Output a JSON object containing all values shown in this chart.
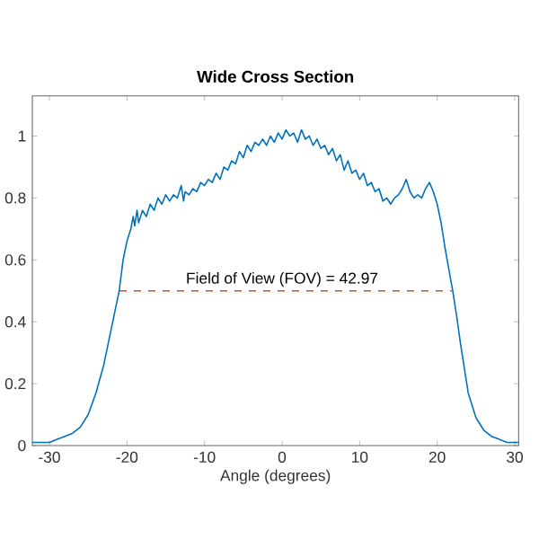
{
  "chart_data": {
    "type": "line",
    "title": "Wide Cross Section",
    "xlabel": "Angle (degrees)",
    "xlim": [
      -32.2,
      30.5
    ],
    "ylim": [
      0,
      1.13
    ],
    "xticks": [
      -30,
      -20,
      -10,
      0,
      10,
      20,
      30
    ],
    "yticks": [
      0,
      0.2,
      0.4,
      0.6,
      0.8,
      1
    ],
    "series": [
      {
        "color": "#0072bd",
        "x": [
          -32.2,
          -31,
          -30,
          -29,
          -28,
          -27,
          -26,
          -25,
          -24,
          -23,
          -22,
          -21.5,
          -21,
          -20.5,
          -20,
          -19.5,
          -19.2,
          -19,
          -18.7,
          -18.5,
          -18,
          -17.5,
          -17,
          -16.5,
          -16,
          -15.5,
          -15,
          -14.5,
          -14,
          -13.5,
          -13,
          -12.7,
          -12.5,
          -12,
          -11.5,
          -11,
          -10.5,
          -10,
          -9.5,
          -9,
          -8.5,
          -8,
          -7.5,
          -7,
          -6.5,
          -6,
          -5.5,
          -5,
          -4.5,
          -4,
          -3.5,
          -3,
          -2.5,
          -2,
          -1.5,
          -1,
          -0.5,
          0,
          0.5,
          1,
          1.5,
          2,
          2.5,
          3,
          3.5,
          4,
          4.5,
          5,
          5.5,
          6,
          6.5,
          7,
          7.5,
          8,
          8.5,
          9,
          9.5,
          10,
          10.5,
          11,
          11.5,
          12,
          12.5,
          13,
          13.5,
          14,
          14.5,
          15,
          15.5,
          16,
          16.5,
          17,
          17.5,
          18,
          18.5,
          19,
          19.5,
          20,
          20.5,
          21,
          21.5,
          22,
          22.5,
          23,
          24,
          25,
          26,
          27,
          28,
          29,
          30,
          30.5
        ],
        "values": [
          0.01,
          0.01,
          0.01,
          0.02,
          0.03,
          0.04,
          0.06,
          0.1,
          0.17,
          0.26,
          0.38,
          0.44,
          0.5,
          0.6,
          0.66,
          0.7,
          0.74,
          0.71,
          0.76,
          0.72,
          0.76,
          0.74,
          0.78,
          0.76,
          0.8,
          0.78,
          0.81,
          0.79,
          0.81,
          0.8,
          0.84,
          0.79,
          0.82,
          0.81,
          0.83,
          0.82,
          0.85,
          0.84,
          0.86,
          0.85,
          0.88,
          0.86,
          0.9,
          0.89,
          0.92,
          0.91,
          0.95,
          0.93,
          0.97,
          0.95,
          0.98,
          0.97,
          0.99,
          0.97,
          1.0,
          0.98,
          1.01,
          0.99,
          1.02,
          1.0,
          1.01,
          0.98,
          1.02,
          0.99,
          1.0,
          0.97,
          0.99,
          0.96,
          0.97,
          0.94,
          0.96,
          0.92,
          0.94,
          0.89,
          0.92,
          0.88,
          0.89,
          0.86,
          0.88,
          0.84,
          0.85,
          0.82,
          0.83,
          0.79,
          0.8,
          0.78,
          0.8,
          0.81,
          0.83,
          0.86,
          0.82,
          0.8,
          0.81,
          0.8,
          0.83,
          0.85,
          0.82,
          0.78,
          0.72,
          0.64,
          0.57,
          0.5,
          0.42,
          0.33,
          0.17,
          0.09,
          0.05,
          0.03,
          0.02,
          0.01,
          0.01,
          0.01
        ]
      },
      {
        "type": "line",
        "color": "#d95319",
        "line_style": "dashed",
        "x": [
          -20.97,
          22.0
        ],
        "values": [
          0.5,
          0.5
        ]
      }
    ],
    "annotations": [
      {
        "text": "Field of View (FOV) = 42.97",
        "x": 0,
        "y": 0.5
      }
    ]
  }
}
